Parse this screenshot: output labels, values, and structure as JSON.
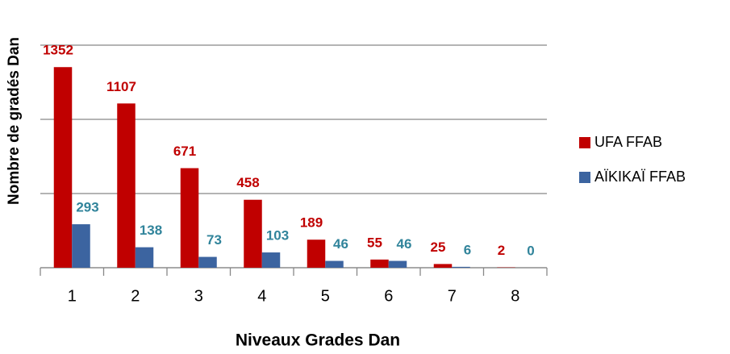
{
  "chart_data": {
    "type": "bar",
    "xlabel": "Niveaux Grades Dan",
    "ylabel": "Nombre de gradés Dan",
    "categories": [
      "1",
      "2",
      "3",
      "4",
      "5",
      "6",
      "7",
      "8"
    ],
    "series": [
      {
        "name": "UFA FFAB",
        "color": "#c00000",
        "label_color": "#c00000",
        "values": [
          1352,
          1107,
          671,
          458,
          189,
          55,
          25,
          2
        ]
      },
      {
        "name": "AÏKIKAÏ FFAB",
        "color": "#3c64a0",
        "label_color": "#31849b",
        "values": [
          293,
          138,
          73,
          103,
          46,
          46,
          6,
          0
        ]
      }
    ],
    "ylim": [
      0,
      1500
    ],
    "yticks": [
      0,
      500,
      1000,
      1500
    ],
    "grid": true,
    "legend": "right"
  }
}
